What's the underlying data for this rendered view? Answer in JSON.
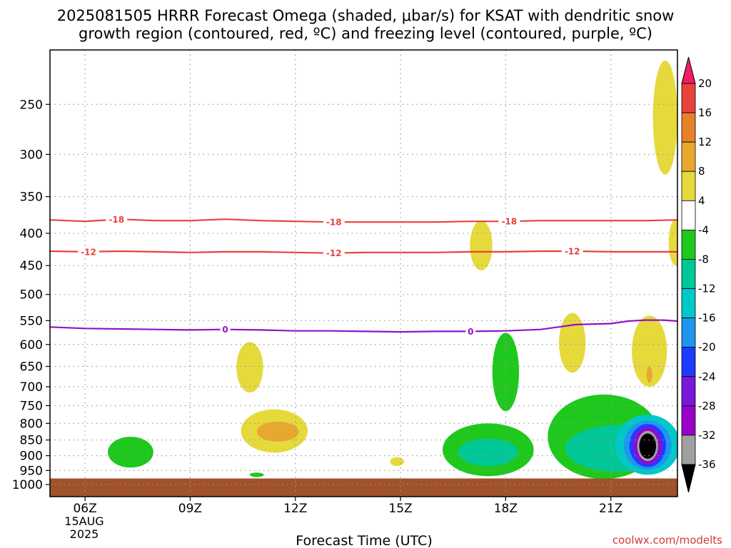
{
  "chart_data": {
    "type": "contour",
    "title_lines": [
      "2025081505 HRRR Forecast Omega (shaded, μbar/s) for KSAT with dendritic snow",
      "growth region (contoured, red, ºC) and freezing level (contoured, purple, ºC)"
    ],
    "xlabel": "Forecast Time (UTC)",
    "credit": "coolwx.com/modelts",
    "y_axis": {
      "scale": "log-pressure",
      "inverted": true,
      "range_hPa": [
        205,
        1045
      ],
      "ticks": [
        250,
        300,
        350,
        400,
        450,
        500,
        550,
        600,
        650,
        700,
        750,
        800,
        850,
        900,
        950,
        1000
      ]
    },
    "x_axis": {
      "range_hours": [
        5,
        22.9
      ],
      "ticks": [
        {
          "hour": 6,
          "label": "06Z"
        },
        {
          "hour": 9,
          "label": "09Z"
        },
        {
          "hour": 12,
          "label": "12Z"
        },
        {
          "hour": 15,
          "label": "15Z"
        },
        {
          "hour": 18,
          "label": "18Z"
        },
        {
          "hour": 21,
          "label": "21Z"
        }
      ],
      "date_label": [
        "15AUG",
        "2025"
      ]
    },
    "grid": true,
    "surface_below_hPa": 978,
    "contours": [
      {
        "name": "-18",
        "color": "#e8423c",
        "points": [
          [
            5,
            381
          ],
          [
            6,
            383
          ],
          [
            7,
            380
          ],
          [
            8,
            382
          ],
          [
            9,
            382
          ],
          [
            10,
            380
          ],
          [
            11,
            382
          ],
          [
            12,
            383
          ],
          [
            13,
            384
          ],
          [
            14,
            384
          ],
          [
            15,
            384
          ],
          [
            16,
            384
          ],
          [
            17,
            383
          ],
          [
            18,
            383
          ],
          [
            19,
            382
          ],
          [
            20,
            382
          ],
          [
            21,
            382
          ],
          [
            22,
            382
          ],
          [
            22.9,
            381
          ]
        ],
        "labels": [
          {
            "x": 6.9,
            "text": "-18"
          },
          {
            "x": 13.1,
            "text": "-18"
          },
          {
            "x": 18.1,
            "text": "-18"
          }
        ]
      },
      {
        "name": "-12",
        "color": "#e8423c",
        "points": [
          [
            5,
            427
          ],
          [
            6,
            428
          ],
          [
            7,
            427
          ],
          [
            8,
            428
          ],
          [
            9,
            429
          ],
          [
            10,
            428
          ],
          [
            11,
            428
          ],
          [
            12,
            429
          ],
          [
            13,
            430
          ],
          [
            14,
            429
          ],
          [
            15,
            429
          ],
          [
            16,
            429
          ],
          [
            17,
            428
          ],
          [
            18,
            428
          ],
          [
            19,
            427
          ],
          [
            20,
            427
          ],
          [
            21,
            428
          ],
          [
            22,
            428
          ],
          [
            22.9,
            428
          ]
        ],
        "labels": [
          {
            "x": 6.1,
            "text": "-12"
          },
          {
            "x": 13.1,
            "text": "-12"
          },
          {
            "x": 19.9,
            "text": "-12"
          }
        ]
      },
      {
        "name": "0",
        "color": "#9013c8",
        "points": [
          [
            5,
            563
          ],
          [
            6,
            566
          ],
          [
            7,
            567
          ],
          [
            8,
            568
          ],
          [
            9,
            569
          ],
          [
            10,
            568
          ],
          [
            11,
            569
          ],
          [
            12,
            571
          ],
          [
            13,
            571
          ],
          [
            14,
            572
          ],
          [
            15,
            573
          ],
          [
            16,
            572
          ],
          [
            17,
            572
          ],
          [
            18,
            571
          ],
          [
            19,
            568
          ],
          [
            19.5,
            563
          ],
          [
            20,
            558
          ],
          [
            21,
            556
          ],
          [
            21.5,
            551
          ],
          [
            22,
            549
          ],
          [
            22.5,
            549
          ],
          [
            22.9,
            551
          ]
        ],
        "labels": [
          {
            "x": 10,
            "text": "0"
          },
          {
            "x": 17,
            "text": "0"
          }
        ]
      }
    ],
    "shaded_regions": [
      {
        "level": "4 to 8",
        "color": "#e6d93c",
        "center": [
          22.55,
          268
        ],
        "rx": 0.35,
        "ry_hPa": 55
      },
      {
        "level": "4 to 8",
        "color": "#e6d93c",
        "center": [
          17.3,
          420
        ],
        "rx": 0.32,
        "ry_hPa": 38
      },
      {
        "level": "4 to 8",
        "color": "#e6d93c",
        "center": [
          22.85,
          415
        ],
        "rx": 0.2,
        "ry_hPa": 35
      },
      {
        "level": "4 to 8",
        "color": "#e6d93c",
        "center": [
          10.7,
          655
        ],
        "rx": 0.38,
        "ry_hPa": 60
      },
      {
        "level": "4 to 8",
        "color": "#e6d93c",
        "center": [
          19.9,
          600
        ],
        "rx": 0.38,
        "ry_hPa": 65
      },
      {
        "level": "4 to 8",
        "color": "#e6d93c",
        "center": [
          22.1,
          620
        ],
        "rx": 0.5,
        "ry_hPa": 80
      },
      {
        "level": "8 to 12",
        "color": "#e8a830",
        "center": [
          22.1,
          670
        ],
        "rx": 0.08,
        "ry_hPa": 20
      },
      {
        "level": "4 to 8",
        "color": "#e6d93c",
        "center": [
          11.4,
          825
        ],
        "rx": 0.95,
        "ry_hPa": 65
      },
      {
        "level": "8 to 12",
        "color": "#e8a830",
        "center": [
          11.5,
          825
        ],
        "rx": 0.6,
        "ry_hPa": 30
      },
      {
        "level": "4 to 8",
        "color": "#e6d93c",
        "center": [
          14.9,
          920
        ],
        "rx": 0.2,
        "ry_hPa": 15
      },
      {
        "level": "-4 to -8",
        "color": "#1fc81c",
        "center": [
          7.3,
          890
        ],
        "rx": 0.65,
        "ry_hPa": 50
      },
      {
        "level": "-4 to -8",
        "color": "#1fc81c",
        "center": [
          10.9,
          965
        ],
        "rx": 0.2,
        "ry_hPa": 8
      },
      {
        "level": "-4 to -8",
        "color": "#1fc81c",
        "center": [
          18,
          670
        ],
        "rx": 0.38,
        "ry_hPa": 95
      },
      {
        "level": "-4 to -8",
        "color": "#1fc81c",
        "center": [
          17.5,
          885
        ],
        "rx": 1.3,
        "ry_hPa": 85
      },
      {
        "level": "-8 to -12",
        "color": "#00c796",
        "center": [
          17.5,
          890
        ],
        "rx": 0.85,
        "ry_hPa": 45
      },
      {
        "level": "-4 to -8",
        "color": "#1fc81c",
        "center": [
          20.8,
          850
        ],
        "rx": 1.6,
        "ry_hPa": 130
      },
      {
        "level": "-8 to -12",
        "color": "#00c796",
        "center": [
          21.2,
          880
        ],
        "rx": 1.5,
        "ry_hPa": 75
      },
      {
        "level": "-12 to -16",
        "color": "#00c8c8",
        "center": [
          22.05,
          870
        ],
        "rx": 0.92,
        "ry_hPa": 95
      },
      {
        "level": "-16 to -20",
        "color": "#1e96f0",
        "center": [
          22.05,
          870
        ],
        "rx": 0.68,
        "ry_hPa": 78
      },
      {
        "level": "-20 to -24",
        "color": "#1e3cff",
        "center": [
          22.05,
          870
        ],
        "rx": 0.52,
        "ry_hPa": 68
      },
      {
        "level": "-24 to -28",
        "color": "#7818dc",
        "center": [
          22.05,
          870
        ],
        "rx": 0.42,
        "ry_hPa": 60
      },
      {
        "level": "-28 to -32",
        "color": "#9a00c8",
        "center": [
          22.05,
          870
        ],
        "rx": 0.36,
        "ry_hPa": 54
      },
      {
        "level": "-32 to -36",
        "color": "#a0a0a0",
        "center": [
          22.05,
          870
        ],
        "rx": 0.3,
        "ry_hPa": 48
      },
      {
        "level": "< -36",
        "color": "#000000",
        "center": [
          22.05,
          870
        ],
        "rx": 0.24,
        "ry_hPa": 40
      }
    ],
    "colorbar": {
      "tick_labels": [
        "20",
        "16",
        "12",
        "8",
        "4",
        "-4",
        "-8",
        "-12",
        "-16",
        "-20",
        "-24",
        "-28",
        "-32",
        "-36"
      ],
      "colors": [
        "#f01e64",
        "#e8423c",
        "#e8802a",
        "#e8a830",
        "#e6d93c",
        "#ffffff",
        "#1fc81c",
        "#00c796",
        "#00c8c8",
        "#1e96f0",
        "#1e3cff",
        "#7818dc",
        "#9a00c8",
        "#a0a0a0",
        "#000000"
      ]
    },
    "colors": {
      "ground": "#a0522d",
      "grid": "#999999",
      "red_contour": "#e8423c",
      "purple_contour": "#9013c8"
    }
  }
}
